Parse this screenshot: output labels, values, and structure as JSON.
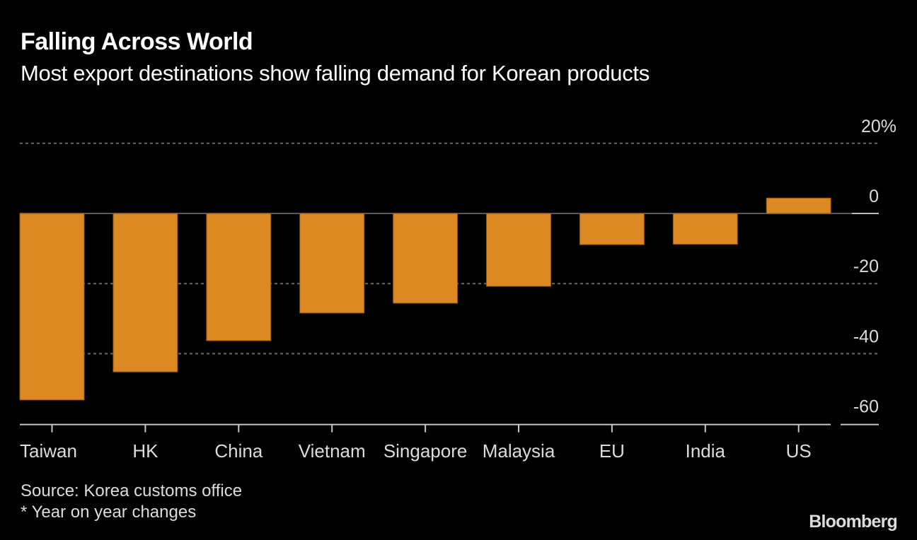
{
  "chart_data": {
    "type": "bar",
    "title": "Falling Across World",
    "subtitle": "Most export destinations show falling demand for Korean products",
    "categories": [
      "Taiwan",
      "HK",
      "China",
      "Vietnam",
      "Singapore",
      "Malaysia",
      "EU",
      "India",
      "US"
    ],
    "values": [
      -53.2,
      -45.2,
      -36.3,
      -28.4,
      -25.6,
      -20.8,
      -8.9,
      -8.8,
      4.4
    ],
    "xlabel": "",
    "ylabel": "",
    "ylim": [
      -60,
      20
    ],
    "yticks": [
      20,
      0,
      -20,
      -40,
      -60
    ],
    "ytick_labels": [
      "20%",
      "0",
      "-20",
      "-40",
      "-60"
    ],
    "grid": true,
    "y_axis_position": "right",
    "bar_color": "#dd8923",
    "source": "Source: Korea customs office",
    "note": "* Year on year changes",
    "brand": "Bloomberg"
  }
}
